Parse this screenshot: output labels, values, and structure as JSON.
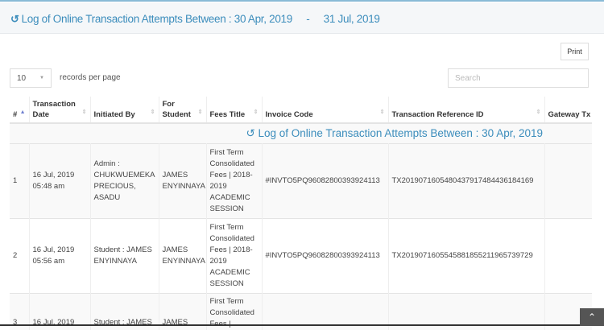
{
  "header": {
    "title": "Log of Online Transaction Attempts Between : 30 Apr, 2019     -     31 Jul, 2019",
    "icon": "history-icon"
  },
  "toolbar": {
    "print_label": "Print",
    "page_size": "10",
    "records_per_page_label": "records per page",
    "search_placeholder": "Search"
  },
  "table": {
    "columns": [
      "#",
      "Transaction Date",
      "Initiated By",
      "For Student",
      "Fees Title",
      "Invoice Code",
      "Transaction Reference ID",
      "Gateway Tx"
    ],
    "caption": "Log of Online Transaction Attempts Between : 30 Apr, 2019",
    "rows": [
      {
        "num": "1",
        "date": "16 Jul, 2019 05:48 am",
        "initiated_by": "Admin : CHUKWUEMEKA PRECIOUS, ASADU",
        "student": "JAMES ENYINNAYA",
        "fees_title": "First Term Consolidated Fees | 2018-2019 ACADEMIC SESSION",
        "invoice": "#INVTO5PQ96082800393924113",
        "reference": "TX20190716054804379174844361841​69",
        "gateway": ""
      },
      {
        "num": "2",
        "date": "16 Jul, 2019 05:56 am",
        "initiated_by": "Student : JAMES ENYINNAYA",
        "student": "JAMES ENYINNAYA",
        "fees_title": "First Term Consolidated Fees | 2018-2019 ACADEMIC SESSION",
        "invoice": "#INVTO5PQ96082800393924113",
        "reference": "TX201907160554588185521196573​9729",
        "gateway": ""
      },
      {
        "num": "3",
        "date": "16 Jul, 2019",
        "initiated_by": "Student : JAMES",
        "student": "JAMES",
        "fees_title": "First Term Consolidated Fees |",
        "invoice": "",
        "reference": "",
        "gateway": ""
      }
    ]
  },
  "colors": {
    "accent": "#3c8dbc"
  }
}
